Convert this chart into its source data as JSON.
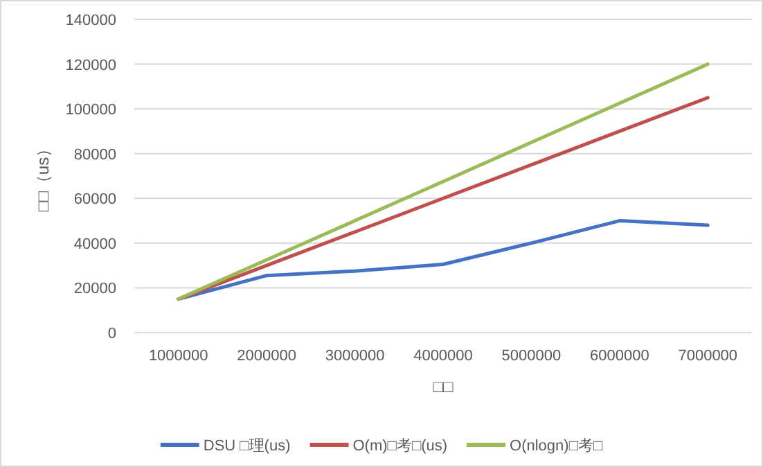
{
  "chart_data": {
    "type": "line",
    "xlabel": "□□",
    "ylabel": "□□（us）",
    "categories": [
      "1000000",
      "2000000",
      "3000000",
      "4000000",
      "5000000",
      "6000000",
      "7000000"
    ],
    "series": [
      {
        "name": "DSU □理(us)",
        "color": "#4472c4",
        "values": [
          15000,
          25500,
          27500,
          30500,
          40000,
          50000,
          48000
        ]
      },
      {
        "name": "O(m)□考□(us)",
        "color": "#c0504d",
        "values": [
          15000,
          30000,
          45000,
          60000,
          75000,
          90000,
          105000
        ]
      },
      {
        "name": "O(nlogn)□考□",
        "color": "#9bbb59",
        "values": [
          15000,
          32500,
          50000,
          67500,
          85000,
          102500,
          120000
        ]
      }
    ],
    "ylim": [
      0,
      140000
    ],
    "yticks": [
      0,
      20000,
      40000,
      60000,
      80000,
      100000,
      120000,
      140000
    ],
    "grid": "y",
    "legend": "bottom",
    "marker": "none",
    "line_style": "solid"
  }
}
